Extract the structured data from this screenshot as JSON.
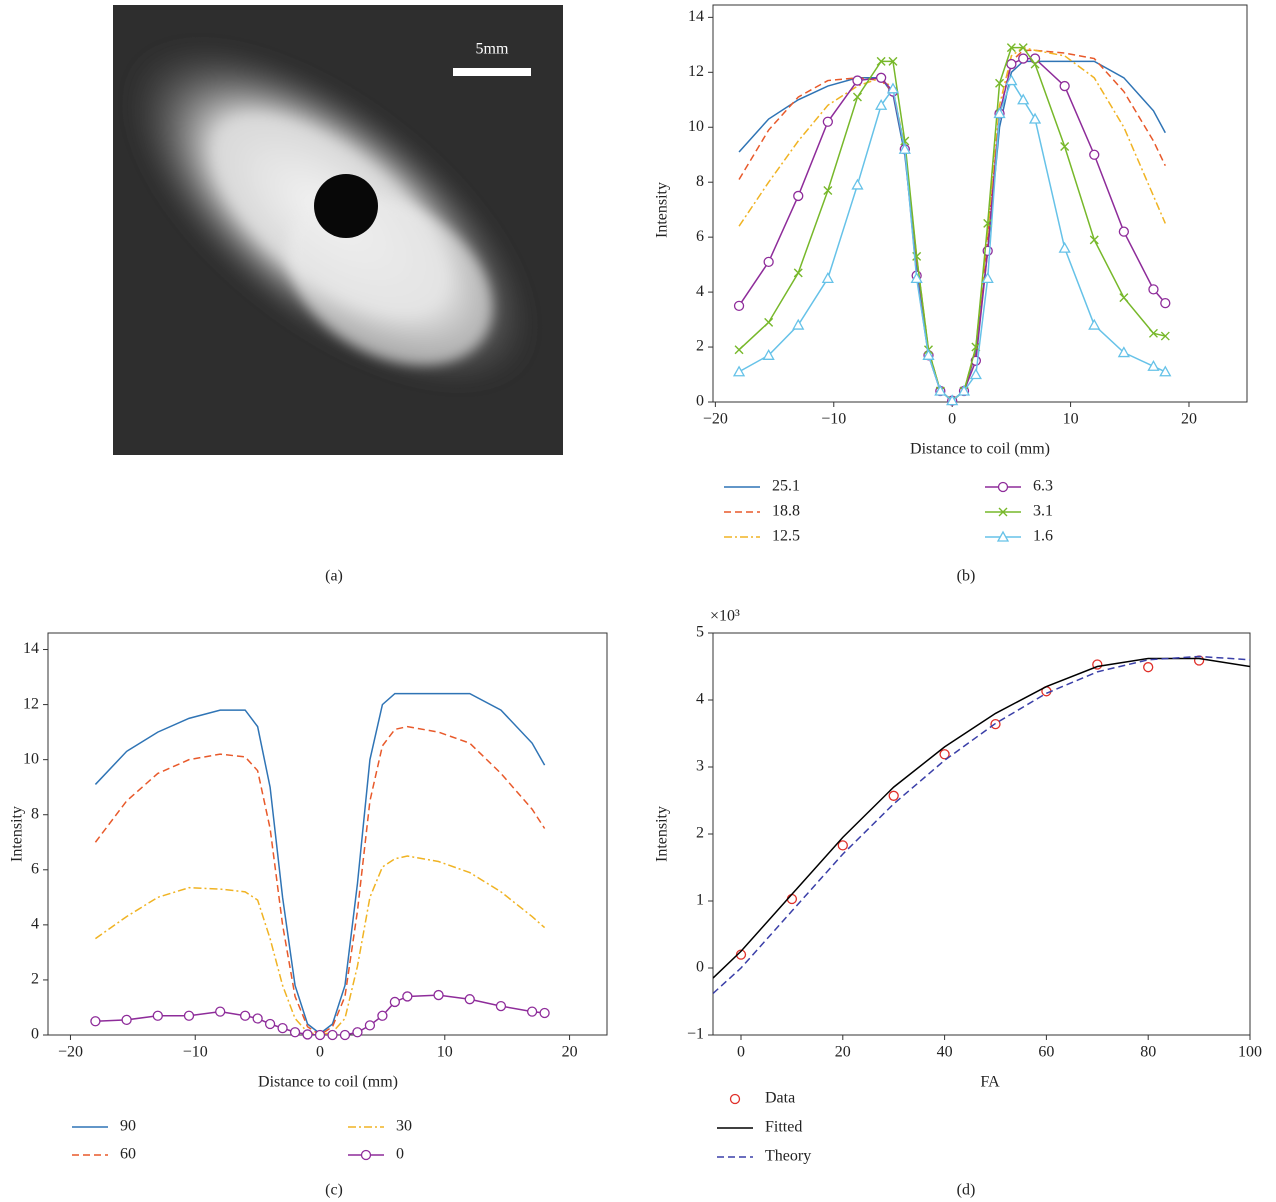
{
  "image": {
    "scale_label": "5mm",
    "caption": "(a)"
  },
  "chart_data": [
    {
      "type": "line",
      "caption": "(b)",
      "xlabel": "Distance to coil (mm)",
      "ylabel": "Intensity",
      "xlim": [
        -20.2,
        24.9
      ],
      "ylim": [
        0,
        14.45
      ],
      "xticks": [
        {
          "value": -20,
          "label": "−20"
        },
        {
          "value": -10,
          "label": "−10"
        },
        0,
        10,
        20
      ],
      "yticks": [
        0,
        2,
        4,
        6,
        8,
        10,
        12,
        14
      ],
      "x": [
        -18,
        -15.5,
        -13,
        -10.5,
        -8,
        -6,
        -5,
        -4,
        -3,
        -2,
        -1,
        0,
        1,
        2,
        3,
        4,
        5,
        6,
        7,
        9.5,
        12,
        14.5,
        17,
        18
      ],
      "series": [
        {
          "name": "25.1",
          "color": "#2f74b5",
          "dash": "solid",
          "values": [
            9.1,
            10.3,
            11.0,
            11.5,
            11.8,
            11.8,
            11.2,
            9.0,
            5.0,
            1.8,
            0.4,
            0.05,
            0.4,
            1.8,
            5.5,
            10.0,
            12.0,
            12.4,
            12.4,
            12.4,
            12.4,
            11.8,
            10.6,
            9.8
          ]
        },
        {
          "name": "18.8",
          "color": "#e8592a",
          "dash": "dashed",
          "values": [
            8.1,
            9.9,
            11.1,
            11.7,
            11.8,
            11.7,
            11.3,
            9.2,
            5.2,
            1.9,
            0.4,
            0.05,
            0.4,
            1.9,
            6.0,
            10.5,
            12.4,
            12.8,
            12.8,
            12.7,
            12.5,
            11.3,
            9.5,
            8.6
          ]
        },
        {
          "name": "12.5",
          "color": "#f0b323",
          "dash": "dashdot",
          "values": [
            6.4,
            8.0,
            9.5,
            10.8,
            11.5,
            11.8,
            11.4,
            9.3,
            5.3,
            1.9,
            0.4,
            0.05,
            0.4,
            2.0,
            6.2,
            10.8,
            12.6,
            12.9,
            12.8,
            12.6,
            11.8,
            10.0,
            7.5,
            6.5
          ]
        },
        {
          "name": "6.3",
          "color": "#8e2c9a",
          "dash": "solid",
          "marker": "circle",
          "values": [
            3.5,
            5.1,
            7.5,
            10.2,
            11.7,
            11.8,
            11.3,
            9.2,
            4.6,
            1.7,
            0.4,
            0.05,
            0.4,
            1.5,
            5.5,
            10.5,
            12.3,
            12.5,
            12.5,
            11.5,
            9.0,
            6.2,
            4.1,
            3.6
          ]
        },
        {
          "name": "3.1",
          "color": "#77b82a",
          "dash": "solid",
          "marker": "x",
          "values": [
            1.9,
            2.9,
            4.7,
            7.7,
            11.1,
            12.4,
            12.4,
            9.5,
            5.3,
            1.9,
            0.4,
            0.05,
            0.4,
            2.0,
            6.5,
            11.6,
            12.9,
            12.9,
            12.3,
            9.3,
            5.9,
            3.8,
            2.5,
            2.4
          ]
        },
        {
          "name": "1.6",
          "color": "#66c2e8",
          "dash": "solid",
          "marker": "triangle",
          "values": [
            1.1,
            1.7,
            2.8,
            4.5,
            7.9,
            10.8,
            11.4,
            9.2,
            4.5,
            1.7,
            0.4,
            0.05,
            0.4,
            1.0,
            4.5,
            10.5,
            11.7,
            11.0,
            10.3,
            5.6,
            2.8,
            1.8,
            1.3,
            1.1
          ]
        }
      ]
    },
    {
      "type": "line",
      "caption": "(c)",
      "xlabel": "Distance to coil (mm)",
      "ylabel": "Intensity",
      "xlim": [
        -21.8,
        23
      ],
      "ylim": [
        0,
        14.6
      ],
      "xticks": [
        {
          "value": -20,
          "label": "−20"
        },
        {
          "value": -10,
          "label": "−10"
        },
        0,
        10,
        20
      ],
      "yticks": [
        0,
        2,
        4,
        6,
        8,
        10,
        12,
        14
      ],
      "x": [
        -18,
        -15.5,
        -13,
        -10.5,
        -8,
        -6,
        -5,
        -4,
        -3,
        -2,
        -1,
        0,
        1,
        2,
        3,
        4,
        5,
        6,
        7,
        9.5,
        12,
        14.5,
        17,
        18
      ],
      "series": [
        {
          "name": "90",
          "color": "#2f74b5",
          "dash": "solid",
          "values": [
            9.1,
            10.3,
            11.0,
            11.5,
            11.8,
            11.8,
            11.2,
            9.0,
            5.0,
            1.8,
            0.4,
            0.05,
            0.4,
            1.8,
            5.5,
            10.0,
            12.0,
            12.4,
            12.4,
            12.4,
            12.4,
            11.8,
            10.6,
            9.8
          ]
        },
        {
          "name": "60",
          "color": "#e8592a",
          "dash": "dashed",
          "values": [
            7.0,
            8.5,
            9.5,
            10.0,
            10.2,
            10.1,
            9.6,
            7.5,
            4.0,
            1.4,
            0.3,
            0,
            0.3,
            1.4,
            4.5,
            8.5,
            10.5,
            11.1,
            11.2,
            11.0,
            10.6,
            9.5,
            8.2,
            7.5
          ]
        },
        {
          "name": "30",
          "color": "#f0b323",
          "dash": "dashdot",
          "values": [
            3.5,
            4.3,
            5.0,
            5.35,
            5.3,
            5.2,
            4.9,
            3.5,
            1.8,
            0.6,
            0.1,
            0,
            0.1,
            0.6,
            2.5,
            5.0,
            6.1,
            6.4,
            6.5,
            6.3,
            5.9,
            5.2,
            4.3,
            3.9
          ]
        },
        {
          "name": "0",
          "color": "#8e2c9a",
          "dash": "solid",
          "marker": "circle",
          "values": [
            0.5,
            0.55,
            0.7,
            0.7,
            0.85,
            0.7,
            0.6,
            0.4,
            0.25,
            0.1,
            0.02,
            0,
            0,
            0,
            0.1,
            0.35,
            0.7,
            1.2,
            1.4,
            1.45,
            1.3,
            1.05,
            0.85,
            0.8
          ]
        }
      ]
    },
    {
      "type": "line",
      "caption": "(d)",
      "xlabel": "FA",
      "ylabel": "Intensity",
      "y_multiplier": "×10³",
      "xlim": [
        -5.5,
        100
      ],
      "ylim": [
        -1,
        5
      ],
      "xticks": [
        0,
        20,
        40,
        60,
        80,
        100
      ],
      "yticks": [
        {
          "value": -1,
          "label": "−1"
        },
        0,
        1,
        2,
        3,
        4,
        5
      ],
      "series": [
        {
          "name": "Data",
          "color": "#e0302a",
          "dash": "none",
          "marker": "circle",
          "x": [
            0,
            10,
            20,
            30,
            40,
            50,
            60,
            70,
            80,
            90
          ],
          "values": [
            0.2,
            1.03,
            1.83,
            2.57,
            3.19,
            3.64,
            4.13,
            4.53,
            4.49,
            4.59
          ]
        },
        {
          "name": "Fitted",
          "color": "#000000",
          "dash": "solid",
          "x": [
            -5.5,
            0,
            10,
            20,
            30,
            40,
            50,
            60,
            70,
            80,
            90,
            100
          ],
          "values": [
            -0.15,
            0.25,
            1.1,
            1.95,
            2.7,
            3.3,
            3.8,
            4.2,
            4.5,
            4.62,
            4.62,
            4.5
          ]
        },
        {
          "name": "Theory",
          "color": "#3a3fa8",
          "dash": "dashed",
          "x": [
            -5.5,
            0,
            10,
            20,
            30,
            40,
            50,
            60,
            70,
            80,
            90,
            100
          ],
          "values": [
            -0.38,
            0.0,
            0.85,
            1.7,
            2.45,
            3.1,
            3.65,
            4.1,
            4.42,
            4.6,
            4.65,
            4.6
          ]
        }
      ]
    }
  ]
}
